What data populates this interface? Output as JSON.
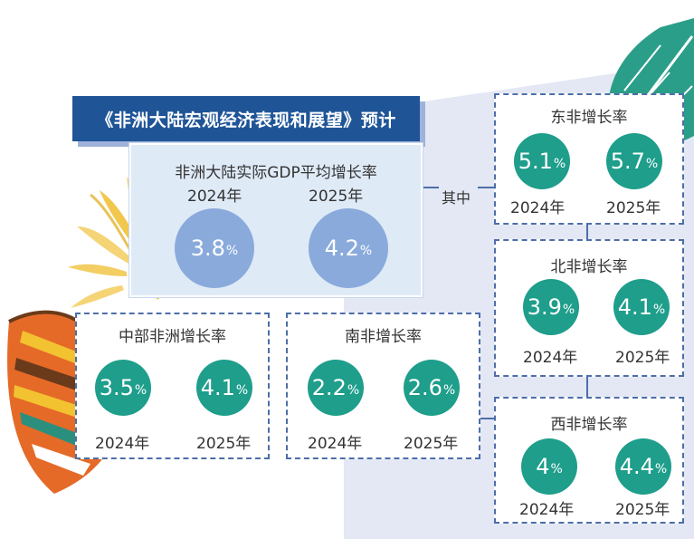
{
  "title": "《非洲大陆宏观经济表现和展望》预计",
  "continent": {
    "heading": "非洲大陆实际GDP平均增长率",
    "year_2024": "2024年",
    "value_2024": "3.8",
    "pct_2024": "%",
    "year_2025": "2025年",
    "value_2025": "4.2",
    "pct_2025": "%"
  },
  "among_label": "其中",
  "regions": {
    "east": {
      "heading": "东非增长率",
      "year_2024": "2024年",
      "value_2024": "5.1",
      "pct_2024": "%",
      "year_2025": "2025年",
      "value_2025": "5.7",
      "pct_2025": "%"
    },
    "north": {
      "heading": "北非增长率",
      "year_2024": "2024年",
      "value_2024": "3.9",
      "pct_2024": "%",
      "year_2025": "2025年",
      "value_2025": "4.1",
      "pct_2025": "%"
    },
    "west": {
      "heading": "西非增长率",
      "year_2024": "2024年",
      "value_2024": "4",
      "pct_2024": "%",
      "year_2025": "2025年",
      "value_2025": "4.4",
      "pct_2025": "%"
    },
    "central": {
      "heading": "中部非洲增长率",
      "year_2024": "2024年",
      "value_2024": "3.5",
      "pct_2024": "%",
      "year_2025": "2025年",
      "value_2025": "4.1",
      "pct_2025": "%"
    },
    "south": {
      "heading": "南非增长率",
      "year_2024": "2024年",
      "value_2024": "2.2",
      "pct_2024": "%",
      "year_2025": "2025年",
      "value_2025": "2.6",
      "pct_2025": "%"
    }
  },
  "colors": {
    "banner": "#1f5597",
    "panel": "#dfeaf7",
    "blue_circle": "#8aaadc",
    "green_circle": "#1e9e8b",
    "dashed_border": "#4d6ea8"
  }
}
